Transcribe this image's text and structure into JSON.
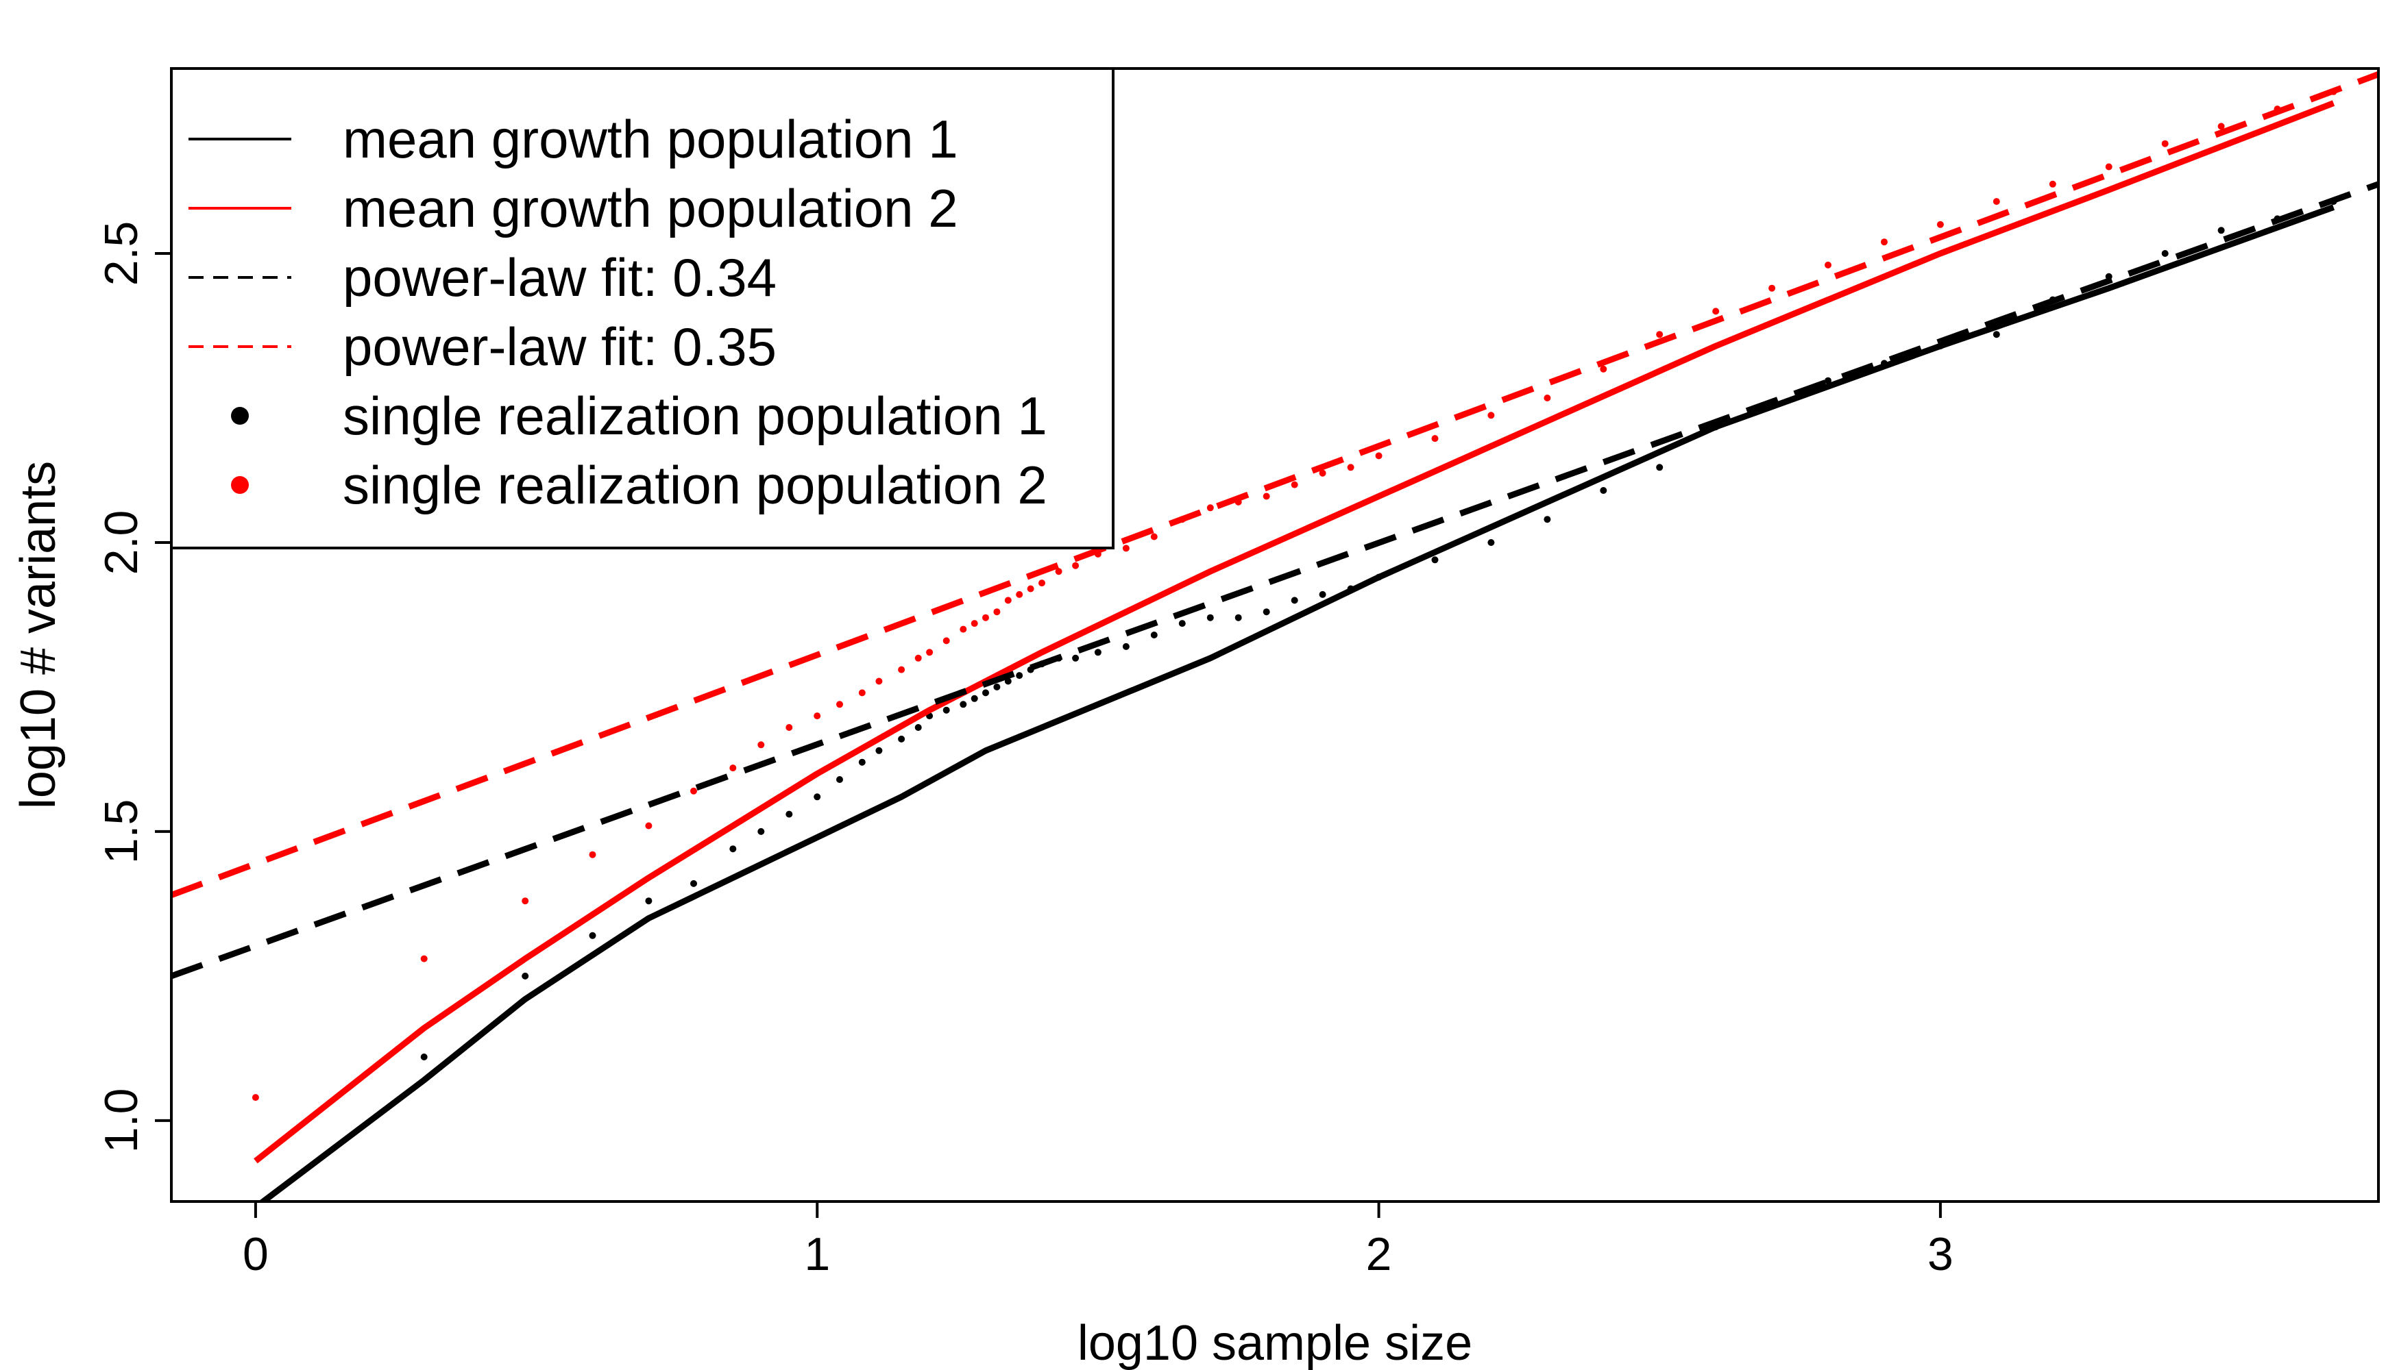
{
  "chart_data": {
    "type": "line",
    "title": "",
    "xlabel": "log10 sample size",
    "ylabel": "log10 # variants",
    "xlim": [
      -0.15,
      3.78
    ],
    "ylim": [
      0.86,
      2.82
    ],
    "x_ticks": [
      0,
      1,
      2,
      3
    ],
    "x_tick_labels": [
      "0",
      "1",
      "2",
      "3"
    ],
    "y_ticks": [
      1.0,
      1.5,
      2.0,
      2.5
    ],
    "y_tick_labels": [
      "1.0",
      "1.5",
      "2.0",
      "2.5"
    ],
    "grid": false,
    "legend": {
      "position": "top-left",
      "entries": [
        {
          "label": "mean growth population 1",
          "style": "solid",
          "color": "#000000"
        },
        {
          "label": "mean growth population 2",
          "style": "solid",
          "color": "#ff0000"
        },
        {
          "label": "power-law fit:  0.34",
          "style": "dashed",
          "color": "#000000"
        },
        {
          "label": "power-law fit:  0.35",
          "style": "dashed",
          "color": "#ff0000"
        },
        {
          "label": "single realization population 1",
          "style": "point",
          "color": "#000000"
        },
        {
          "label": "single realization population 2",
          "style": "point",
          "color": "#ff0000"
        }
      ]
    },
    "series": [
      {
        "name": "mean growth population 1",
        "kind": "line",
        "dash": false,
        "color": "#000000",
        "x": [
          0,
          0.3,
          0.48,
          0.7,
          1.0,
          1.15,
          1.3,
          1.5,
          1.7,
          2.0,
          2.3,
          2.6,
          3.0,
          3.3,
          3.7
        ],
        "y": [
          0.85,
          1.07,
          1.21,
          1.35,
          1.49,
          1.56,
          1.64,
          1.72,
          1.8,
          1.94,
          2.07,
          2.2,
          2.34,
          2.44,
          2.58
        ]
      },
      {
        "name": "mean growth population 2",
        "kind": "line",
        "dash": false,
        "color": "#ff0000",
        "x": [
          0,
          0.3,
          0.48,
          0.7,
          0.85,
          1.0,
          1.2,
          1.4,
          1.7,
          2.0,
          2.3,
          2.6,
          3.0,
          3.3,
          3.7
        ],
        "y": [
          0.93,
          1.16,
          1.28,
          1.42,
          1.51,
          1.6,
          1.71,
          1.81,
          1.95,
          2.08,
          2.21,
          2.34,
          2.5,
          2.61,
          2.76
        ]
      },
      {
        "name": "power-law fit:  0.34",
        "kind": "line",
        "dash": true,
        "color": "#000000",
        "x": [
          -0.15,
          3.78
        ],
        "y": [
          1.25,
          2.62
        ]
      },
      {
        "name": "power-law fit:  0.35",
        "kind": "line",
        "dash": true,
        "color": "#ff0000",
        "x": [
          -0.15,
          3.78
        ],
        "y": [
          1.39,
          2.81
        ]
      },
      {
        "name": "single realization population 1",
        "kind": "points",
        "color": "#000000",
        "x": [
          0,
          0.3,
          0.48,
          0.6,
          0.7,
          0.78,
          0.85,
          0.9,
          0.95,
          1.0,
          1.04,
          1.08,
          1.11,
          1.15,
          1.18,
          1.2,
          1.23,
          1.26,
          1.28,
          1.3,
          1.32,
          1.34,
          1.36,
          1.38,
          1.4,
          1.43,
          1.46,
          1.5,
          1.55,
          1.6,
          1.65,
          1.7,
          1.75,
          1.8,
          1.85,
          1.9,
          1.95,
          2.0,
          2.1,
          2.2,
          2.3,
          2.4,
          2.5,
          2.6,
          2.7,
          2.8,
          2.9,
          3.0,
          3.1,
          3.2,
          3.3,
          3.4,
          3.5,
          3.6,
          3.7
        ],
        "y": [
          0.85,
          1.11,
          1.25,
          1.32,
          1.38,
          1.41,
          1.47,
          1.5,
          1.53,
          1.56,
          1.59,
          1.62,
          1.64,
          1.66,
          1.68,
          1.7,
          1.71,
          1.72,
          1.73,
          1.74,
          1.75,
          1.76,
          1.77,
          1.78,
          1.79,
          1.8,
          1.8,
          1.81,
          1.82,
          1.84,
          1.86,
          1.87,
          1.87,
          1.88,
          1.9,
          1.91,
          1.92,
          1.94,
          1.97,
          2.0,
          2.04,
          2.09,
          2.13,
          2.2,
          2.24,
          2.28,
          2.31,
          2.34,
          2.36,
          2.42,
          2.46,
          2.5,
          2.54,
          2.56,
          2.59
        ]
      },
      {
        "name": "single realization population 2",
        "kind": "points",
        "color": "#ff0000",
        "x": [
          0,
          0.3,
          0.48,
          0.6,
          0.7,
          0.78,
          0.85,
          0.9,
          0.95,
          1.0,
          1.04,
          1.08,
          1.11,
          1.15,
          1.18,
          1.2,
          1.23,
          1.26,
          1.28,
          1.3,
          1.32,
          1.34,
          1.36,
          1.38,
          1.4,
          1.43,
          1.46,
          1.5,
          1.55,
          1.6,
          1.65,
          1.7,
          1.75,
          1.8,
          1.85,
          1.9,
          1.95,
          2.0,
          2.1,
          2.2,
          2.3,
          2.4,
          2.5,
          2.6,
          2.7,
          2.8,
          2.9,
          3.0,
          3.1,
          3.2,
          3.3,
          3.4,
          3.5,
          3.6,
          3.7
        ],
        "y": [
          1.04,
          1.28,
          1.38,
          1.46,
          1.51,
          1.57,
          1.61,
          1.65,
          1.68,
          1.7,
          1.72,
          1.74,
          1.76,
          1.78,
          1.8,
          1.81,
          1.83,
          1.85,
          1.86,
          1.87,
          1.88,
          1.9,
          1.91,
          1.92,
          1.93,
          1.95,
          1.96,
          1.98,
          1.99,
          2.01,
          2.04,
          2.06,
          2.07,
          2.08,
          2.1,
          2.12,
          2.13,
          2.15,
          2.18,
          2.22,
          2.25,
          2.3,
          2.36,
          2.4,
          2.44,
          2.48,
          2.52,
          2.55,
          2.59,
          2.62,
          2.65,
          2.69,
          2.72,
          2.75,
          2.78
        ]
      }
    ]
  }
}
